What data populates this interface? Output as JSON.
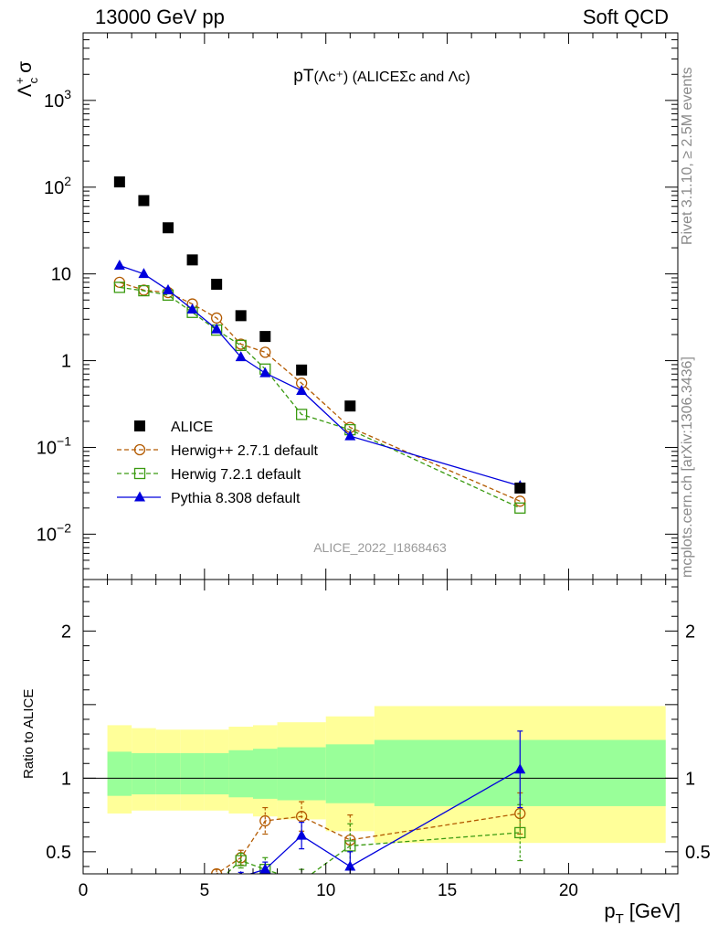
{
  "header": {
    "energy": "13000 GeV pp",
    "process": "Soft QCD"
  },
  "side_labels": {
    "rivet": "Rivet 3.1.10, ≥ 2.5M events",
    "mcplots": "mcplots.cern.ch [arXiv:1306.3436]"
  },
  "chart_data": [
    {
      "type": "scatter",
      "title_main": "pT",
      "title_paren": "(Λc⁺) (ALICEΣc and Λc)",
      "ylabel_main": "Λ",
      "ylabel_sup": "+",
      "ylabel_sub": "c",
      "ylabel_tail": "σ",
      "watermark": "ALICE_2022_I1868463",
      "y_scale": "log",
      "ylim": [
        0.003,
        6000
      ],
      "xlim": [
        0,
        24.5
      ],
      "y_ticks": [
        {
          "value": 0.01,
          "base": "10",
          "exp": "−2"
        },
        {
          "value": 0.1,
          "base": "10",
          "exp": "−1"
        },
        {
          "value": 1,
          "base": "1",
          "exp": ""
        },
        {
          "value": 10,
          "base": "10",
          "exp": ""
        },
        {
          "value": 100,
          "base": "10",
          "exp": "2"
        },
        {
          "value": 1000,
          "base": "10",
          "exp": "3"
        }
      ],
      "legend_position": "bottom-left",
      "series": [
        {
          "name": "ALICE",
          "color": "#000000",
          "marker": "filled-square",
          "line": "none",
          "x": [
            1.5,
            2.5,
            3.5,
            4.5,
            5.5,
            6.5,
            7.5,
            9,
            11,
            18
          ],
          "y": [
            115,
            70,
            34,
            14.5,
            7.6,
            3.3,
            1.9,
            0.78,
            0.3,
            0.034
          ]
        },
        {
          "name": "Herwig++ 2.7.1 default",
          "color": "#b35a00",
          "marker": "open-circle",
          "line": "dashed",
          "x": [
            1.5,
            2.5,
            3.5,
            4.5,
            5.5,
            6.5,
            7.5,
            9,
            11,
            18
          ],
          "y": [
            8.0,
            6.5,
            6.1,
            4.5,
            3.1,
            1.55,
            1.25,
            0.55,
            0.17,
            0.024
          ]
        },
        {
          "name": "Herwig 7.2.1 default",
          "color": "#3a9a10",
          "marker": "open-square",
          "line": "dashed",
          "x": [
            1.5,
            2.5,
            3.5,
            4.5,
            5.5,
            6.5,
            7.5,
            9,
            11,
            18
          ],
          "y": [
            7.0,
            6.4,
            5.7,
            3.6,
            2.25,
            1.5,
            0.8,
            0.24,
            0.16,
            0.02
          ]
        },
        {
          "name": "Pythia 8.308 default",
          "color": "#0000dd",
          "marker": "filled-triangle",
          "line": "solid",
          "x": [
            1.5,
            2.5,
            3.5,
            4.5,
            5.5,
            6.5,
            7.5,
            9,
            11,
            18
          ],
          "y": [
            12.5,
            10.0,
            6.5,
            3.9,
            2.3,
            1.1,
            0.72,
            0.45,
            0.135,
            0.036
          ]
        }
      ]
    },
    {
      "type": "scatter",
      "ylabel": "Ratio to ALICE",
      "xlabel_main": "p",
      "xlabel_sub": "T",
      "xlabel_unit": "[GeV]",
      "ylim": [
        0.35,
        2.35
      ],
      "xlim": [
        0,
        24.5
      ],
      "x_ticks": [
        0,
        5,
        10,
        15,
        20
      ],
      "y_ticks": [
        0.5,
        1,
        2
      ],
      "bands": {
        "edges": [
          1,
          2,
          3,
          4,
          5,
          6,
          7,
          8,
          10,
          12,
          24
        ],
        "inner_low": [
          0.88,
          0.89,
          0.89,
          0.89,
          0.89,
          0.87,
          0.86,
          0.85,
          0.83,
          0.81
        ],
        "inner_high": [
          1.18,
          1.17,
          1.17,
          1.17,
          1.17,
          1.19,
          1.2,
          1.21,
          1.23,
          1.26
        ],
        "outer_low": [
          0.76,
          0.78,
          0.78,
          0.78,
          0.78,
          0.76,
          0.74,
          0.72,
          0.64,
          0.56
        ],
        "outer_high": [
          1.36,
          1.34,
          1.33,
          1.33,
          1.33,
          1.35,
          1.36,
          1.38,
          1.42,
          1.49
        ],
        "inner_color": "#99ff99",
        "outer_color": "#ffff99"
      },
      "series": [
        {
          "name": "Herwig++ 2.7.1 default",
          "color": "#b35a00",
          "marker": "open-circle",
          "line": "dashed",
          "x": [
            4.5,
            5.5,
            6.5,
            7.5,
            9,
            11,
            18
          ],
          "y": [
            0.31,
            0.35,
            0.46,
            0.71,
            0.74,
            0.58,
            0.76
          ],
          "err": [
            0.02,
            0.03,
            0.05,
            0.09,
            0.1,
            0.17,
            0.14
          ]
        },
        {
          "name": "Herwig 7.2.1 default",
          "color": "#3a9a10",
          "marker": "open-square",
          "line": "dashed",
          "x": [
            5.5,
            6.5,
            7.5,
            9,
            11,
            18
          ],
          "y": [
            0.29,
            0.44,
            0.38,
            0.3,
            0.54,
            0.63
          ],
          "err": [
            0.03,
            0.05,
            0.08,
            0.08,
            0.15,
            0.19
          ]
        },
        {
          "name": "Pythia 8.308 default",
          "color": "#0000dd",
          "marker": "filled-triangle",
          "line": "solid",
          "x": [
            5.5,
            6.5,
            7.5,
            9,
            11,
            18
          ],
          "y": [
            0.3,
            0.33,
            0.38,
            0.61,
            0.4,
            1.06
          ],
          "err": [
            0.02,
            0.03,
            0.05,
            0.09,
            0.1,
            0.26
          ]
        }
      ]
    }
  ]
}
